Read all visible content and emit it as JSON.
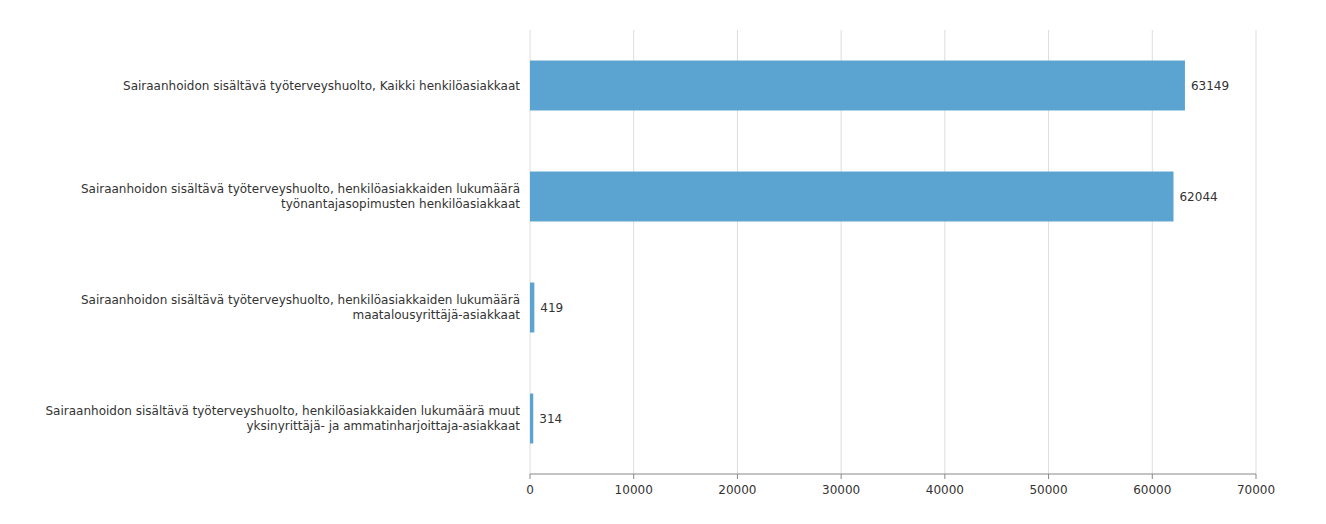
{
  "chart_data": {
    "type": "bar",
    "orientation": "horizontal",
    "categories": [
      "Sairaanhoidon sisältävä työterveyshuolto, henkilöasiakkaiden lukumäärä muut\nyksinyrittäjä- ja ammatinharjoittaja-asiakkaat",
      "Sairaanhoidon sisältävä työterveyshuolto, henkilöasiakkaiden lukumäärä\nmaatalousyrittäjä-asiakkaat",
      "Sairaanhoidon sisältävä työterveyshuolto, henkilöasiakkaiden lukumäärä\ntyönantajasopimusten henkilöasiakkaat",
      "Sairaanhoidon sisältävä työterveyshuolto, Kaikki henkilöasiakkaat"
    ],
    "values": [
      314,
      419,
      62044,
      63149
    ],
    "color": "#5BA3D0",
    "xlim": [
      0,
      70000
    ],
    "xticks": [
      0,
      10000,
      20000,
      30000,
      40000,
      50000,
      60000,
      70000
    ],
    "grid": true,
    "data_labels": true
  }
}
